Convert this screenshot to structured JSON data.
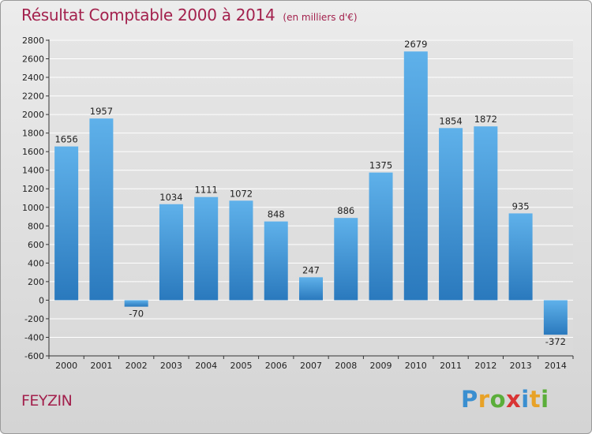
{
  "header": {
    "title": "Résultat Comptable 2000 à 2014",
    "subtitle": "(en milliers d'€)"
  },
  "footer": {
    "commune": "FEYZIN",
    "logo_letters": [
      "P",
      "r",
      "o",
      "x",
      "i",
      "t",
      "i"
    ],
    "logo_colors": [
      "#3a8fd0",
      "#e8a227",
      "#5bae3a",
      "#d93434",
      "#3a8fd0",
      "#e8a227",
      "#5bae3a"
    ]
  },
  "colors": {
    "bar_top": "#5fb1ea",
    "bar_bottom": "#2a79bd",
    "grid": "#ffffff",
    "title": "#a3214d"
  },
  "chart_data": {
    "type": "bar",
    "title": "Résultat Comptable 2000 à 2014",
    "subtitle": "(en milliers d'€)",
    "xlabel": "",
    "ylabel": "",
    "categories": [
      "2000",
      "2001",
      "2002",
      "2003",
      "2004",
      "2005",
      "2006",
      "2007",
      "2008",
      "2009",
      "2010",
      "2011",
      "2012",
      "2013",
      "2014"
    ],
    "values": [
      1656,
      1957,
      -70,
      1034,
      1111,
      1072,
      848,
      247,
      886,
      1375,
      2679,
      1854,
      1872,
      935,
      -372
    ],
    "value_labels": [
      "1656",
      "1957",
      "-70",
      "1034",
      "1111",
      "1072",
      "848",
      "247",
      "886",
      "1375",
      "2679",
      "1854",
      "1872",
      "935",
      "-372"
    ],
    "ylim": [
      -600,
      2800
    ],
    "yticks": [
      -600,
      -400,
      -200,
      0,
      200,
      400,
      600,
      800,
      1000,
      1200,
      1400,
      1600,
      1800,
      2000,
      2200,
      2400,
      2600,
      2800
    ],
    "ytick_labels": [
      "-600",
      "-400",
      "-200",
      "0",
      "200",
      "400",
      "600",
      "800",
      "1000",
      "1200",
      "1400",
      "1600",
      "1800",
      "2000",
      "2200",
      "2400",
      "2600",
      "2800"
    ],
    "grid": true,
    "legend": "none"
  }
}
